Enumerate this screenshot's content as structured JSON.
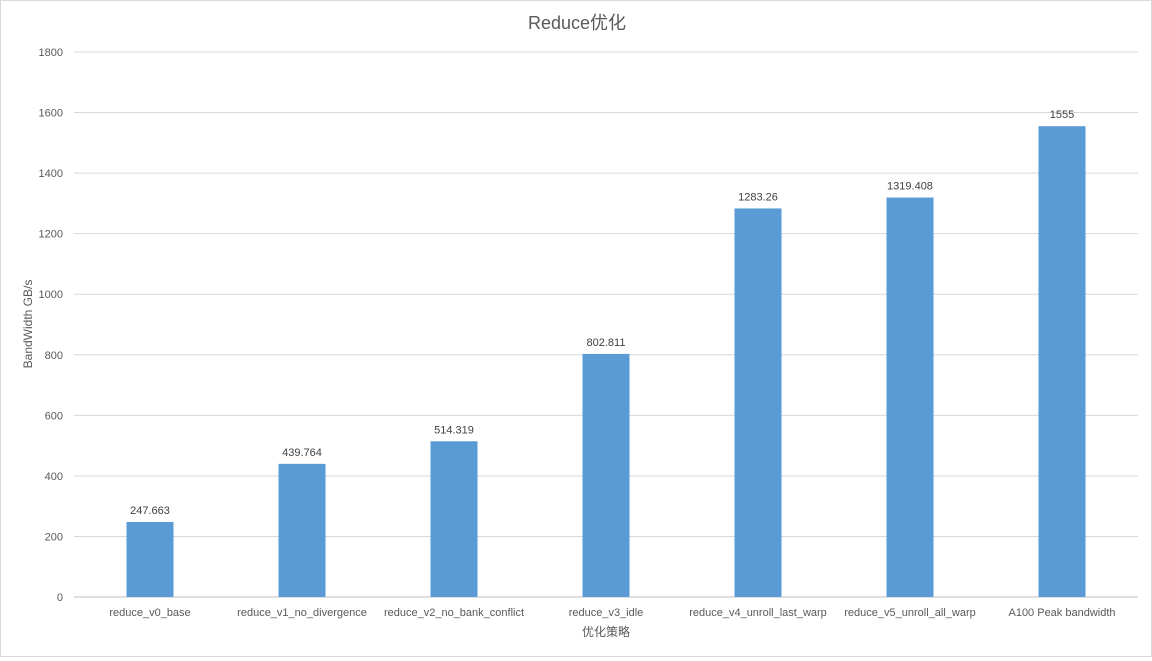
{
  "chart_data": {
    "type": "bar",
    "title": "Reduce优化",
    "xlabel": "优化策略",
    "ylabel": "BandWidth GB/s",
    "ylim": [
      0,
      1800
    ],
    "yticks": [
      0,
      200,
      400,
      600,
      800,
      1000,
      1200,
      1400,
      1600,
      1800
    ],
    "grid": true,
    "legend": "none",
    "bar_color": "#5b9bd5",
    "categories": [
      "reduce_v0_base",
      "reduce_v1_no_divergence",
      "reduce_v2_no_bank_conflict",
      "reduce_v3_idle",
      "reduce_v4_unroll_last_warp",
      "reduce_v5_unroll_all_warp",
      "A100 Peak bandwidth"
    ],
    "values": [
      247.663,
      439.764,
      514.319,
      802.811,
      1283.26,
      1319.408,
      1555
    ],
    "data_labels": [
      "247.663",
      "439.764",
      "514.319",
      "802.811",
      "1283.26",
      "1319.408",
      "1555"
    ]
  }
}
